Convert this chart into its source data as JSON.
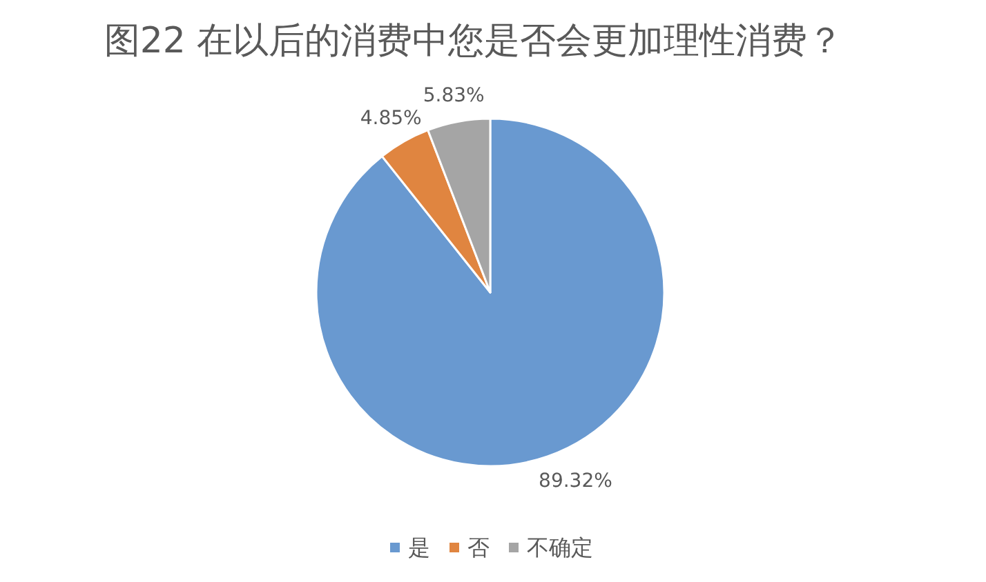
{
  "chart_data": {
    "type": "pie",
    "title": "图22 在以后的消费中您是否会更加理性消费？",
    "categories": [
      "是",
      "否",
      "不确定"
    ],
    "values": [
      89.32,
      4.85,
      5.83
    ],
    "colors": [
      "#6999d0",
      "#e08540",
      "#a5a5a5"
    ],
    "value_labels": [
      "89.32%",
      "4.85%",
      "5.83%"
    ],
    "legend": "bottom"
  }
}
